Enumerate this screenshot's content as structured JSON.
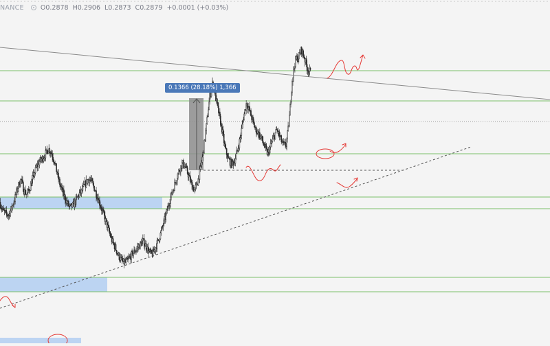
{
  "header": {
    "symbol_partial": "NANCE",
    "open_label": "O",
    "open": "0.2878",
    "high_label": "H",
    "high": "0.2906",
    "low_label": "L",
    "low": "0.2873",
    "close_label": "C",
    "close": "0.2879",
    "change": "+0.0001 (+0.03%)"
  },
  "measure": {
    "label": "0.1366 (28.18%) 1,366"
  },
  "colors": {
    "background": "#f4f4f4",
    "candle": "#2b2b2b",
    "level_line": "#4caf50",
    "zone": "#bcd4f2",
    "measure_box": "#8c8c8c",
    "annotation": "#e53935",
    "label_bg": "#4a78b8"
  },
  "chart_data": {
    "type": "candlestick",
    "title": "",
    "xlabel": "",
    "ylabel": "",
    "ylim": [
      0.1,
      0.55
    ],
    "grid": false,
    "legend": "none",
    "horizontal_levels": [
      0.48,
      0.454,
      0.418,
      0.38,
      0.302,
      0.288,
      0.17,
      0.15
    ],
    "support_zones": [
      {
        "y_low": 0.286,
        "y_high": 0.302
      },
      {
        "y_low": 0.15,
        "y_high": 0.17
      },
      {
        "y_low": 0.045,
        "y_high": 0.052
      }
    ],
    "measure": {
      "from": 0.3479,
      "to": 0.4845,
      "change": 0.1366,
      "percent": 28.18,
      "ticks": 1366
    },
    "dashed_support": 0.3479,
    "current_price_line": 0.452,
    "series": [
      {
        "values": [
          0.285,
          0.274,
          0.27,
          0.268,
          0.278,
          0.29,
          0.305,
          0.315,
          0.3,
          0.295,
          0.305,
          0.318,
          0.33,
          0.338,
          0.342,
          0.348,
          0.355,
          0.35,
          0.338,
          0.32,
          0.305,
          0.295,
          0.285,
          0.278,
          0.28,
          0.287,
          0.295,
          0.3,
          0.308,
          0.315,
          0.313,
          0.304,
          0.293,
          0.282,
          0.27,
          0.258,
          0.245,
          0.233,
          0.225,
          0.215,
          0.208,
          0.205,
          0.208,
          0.214,
          0.219,
          0.224,
          0.229,
          0.234,
          0.228,
          0.22,
          0.216,
          0.224,
          0.234,
          0.246,
          0.26,
          0.275,
          0.29,
          0.302,
          0.316,
          0.328,
          0.336,
          0.33,
          0.32,
          0.308,
          0.3,
          0.312,
          0.33,
          0.355,
          0.39,
          0.425,
          0.442,
          0.42,
          0.4,
          0.38,
          0.355,
          0.342,
          0.335,
          0.338,
          0.352,
          0.37,
          0.395,
          0.415,
          0.405,
          0.392,
          0.38,
          0.375,
          0.368,
          0.357,
          0.348,
          0.36,
          0.37,
          0.38,
          0.37,
          0.36,
          0.36,
          0.39,
          0.445,
          0.47,
          0.475,
          0.485,
          0.475,
          0.46,
          0.455
        ]
      }
    ]
  }
}
